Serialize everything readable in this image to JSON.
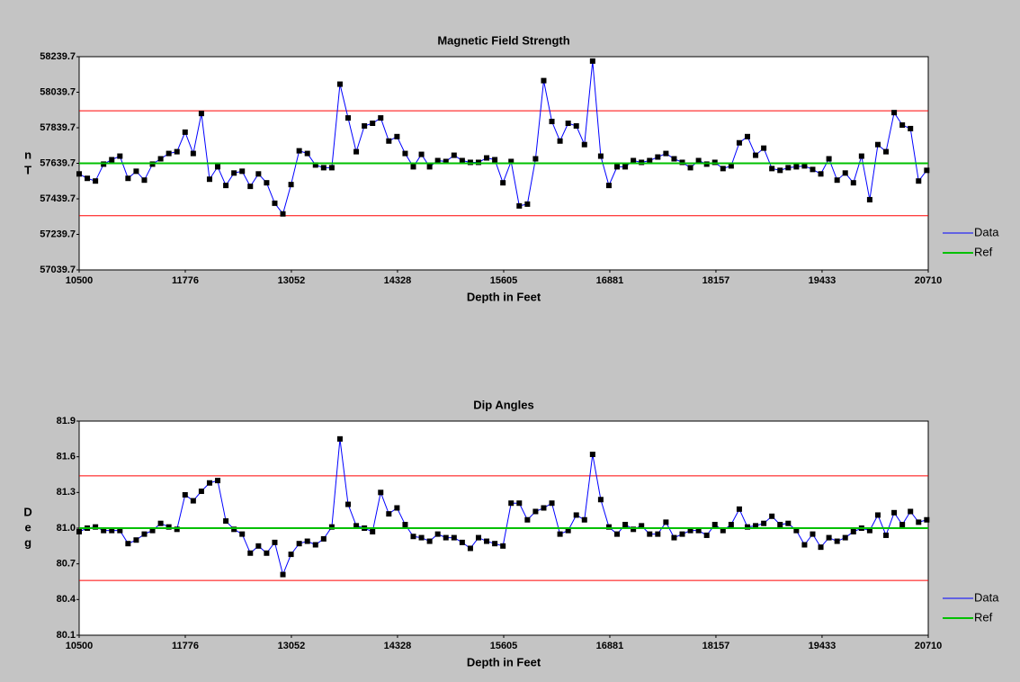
{
  "chart_data": [
    {
      "type": "line",
      "title": "Magnetic Field Strength",
      "xlabel": "Depth in Feet",
      "ylabel": "nT",
      "xlim": [
        10500,
        20710
      ],
      "xticks": [
        10500,
        11776,
        13052,
        14328,
        15605,
        16881,
        18157,
        19433,
        20710
      ],
      "ylim": [
        57039.7,
        58239.7
      ],
      "yticks": [
        57039.7,
        57239.7,
        57439.7,
        57639.7,
        57839.7,
        58039.7,
        58239.7
      ],
      "legend": "right",
      "marker": "square",
      "marker_color": "#000000",
      "x": [
        10500,
        10598,
        10696,
        10794,
        10892,
        10990,
        11088,
        11186,
        11284,
        11382,
        11480,
        11578,
        11676,
        11774,
        11872,
        11970,
        12068,
        12166,
        12264,
        12362,
        12460,
        12558,
        12656,
        12754,
        12852,
        12950,
        13048,
        13146,
        13244,
        13342,
        13440,
        13538,
        13636,
        13734,
        13832,
        13930,
        14028,
        14126,
        14224,
        14322,
        14420,
        14518,
        14616,
        14714,
        14812,
        14910,
        15008,
        15106,
        15204,
        15302,
        15400,
        15498,
        15596,
        15694,
        15792,
        15890,
        15988,
        16086,
        16184,
        16282,
        16380,
        16478,
        16576,
        16674,
        16772,
        16870,
        16968,
        17066,
        17164,
        17262,
        17360,
        17458,
        17556,
        17654,
        17752,
        17850,
        17948,
        18046,
        18144,
        18242,
        18340,
        18438,
        18536,
        18634,
        18732,
        18830,
        18928,
        19026,
        19124,
        19222,
        19320,
        19418,
        19516,
        19614,
        19712,
        19810,
        19908,
        20006,
        20104,
        20202,
        20300,
        20398,
        20496,
        20594,
        20692
      ],
      "series": [
        {
          "name": "Data",
          "color": "#0000ff",
          "values": [
            57580,
            57555,
            57540,
            57635,
            57660,
            57680,
            57555,
            57595,
            57545,
            57635,
            57665,
            57695,
            57705,
            57815,
            57695,
            57920,
            57550,
            57620,
            57515,
            57585,
            57595,
            57510,
            57580,
            57530,
            57415,
            57355,
            57520,
            57710,
            57695,
            57630,
            57615,
            57615,
            58085,
            57895,
            57705,
            57850,
            57865,
            57895,
            57765,
            57790,
            57695,
            57620,
            57690,
            57620,
            57655,
            57650,
            57685,
            57655,
            57645,
            57645,
            57670,
            57660,
            57530,
            57650,
            57400,
            57410,
            57665,
            58105,
            57875,
            57765,
            57865,
            57850,
            57745,
            58215,
            57680,
            57515,
            57620,
            57620,
            57655,
            57645,
            57655,
            57675,
            57695,
            57665,
            57645,
            57615,
            57655,
            57635,
            57645,
            57610,
            57625,
            57755,
            57790,
            57685,
            57725,
            57610,
            57600,
            57615,
            57620,
            57625,
            57605,
            57580,
            57665,
            57545,
            57585,
            57530,
            57680,
            57435,
            57745,
            57705,
            57925,
            57855,
            57835,
            57540,
            57600
          ]
        },
        {
          "name": "Ref",
          "color": "#00c000",
          "value": 57639.7
        }
      ],
      "limits": [
        57935,
        57345
      ],
      "limit_color": "#ff0000"
    },
    {
      "type": "line",
      "title": "Dip Angles",
      "xlabel": "Depth in Feet",
      "ylabel": "Deg",
      "xlim": [
        10500,
        20710
      ],
      "xticks": [
        10500,
        11776,
        13052,
        14328,
        15605,
        16881,
        18157,
        19433,
        20710
      ],
      "ylim": [
        80.1,
        81.9
      ],
      "yticks": [
        80.1,
        80.4,
        80.7,
        {
          "value": 81,
          "label": "81.0"
        },
        81.3,
        81.6,
        81.9
      ],
      "legend": "right",
      "marker": "square",
      "marker_color": "#000000",
      "x": [
        10500,
        10598,
        10696,
        10794,
        10892,
        10990,
        11088,
        11186,
        11284,
        11382,
        11480,
        11578,
        11676,
        11774,
        11872,
        11970,
        12068,
        12166,
        12264,
        12362,
        12460,
        12558,
        12656,
        12754,
        12852,
        12950,
        13048,
        13146,
        13244,
        13342,
        13440,
        13538,
        13636,
        13734,
        13832,
        13930,
        14028,
        14126,
        14224,
        14322,
        14420,
        14518,
        14616,
        14714,
        14812,
        14910,
        15008,
        15106,
        15204,
        15302,
        15400,
        15498,
        15596,
        15694,
        15792,
        15890,
        15988,
        16086,
        16184,
        16282,
        16380,
        16478,
        16576,
        16674,
        16772,
        16870,
        16968,
        17066,
        17164,
        17262,
        17360,
        17458,
        17556,
        17654,
        17752,
        17850,
        17948,
        18046,
        18144,
        18242,
        18340,
        18438,
        18536,
        18634,
        18732,
        18830,
        18928,
        19026,
        19124,
        19222,
        19320,
        19418,
        19516,
        19614,
        19712,
        19810,
        19908,
        20006,
        20104,
        20202,
        20300,
        20398,
        20496,
        20594,
        20692
      ],
      "series": [
        {
          "name": "Data",
          "color": "#0000ff",
          "values": [
            80.97,
            81.0,
            81.01,
            80.98,
            80.98,
            80.98,
            80.87,
            80.9,
            80.95,
            80.98,
            81.04,
            81.01,
            80.99,
            81.28,
            81.23,
            81.31,
            81.38,
            81.4,
            81.06,
            80.99,
            80.95,
            80.79,
            80.85,
            80.79,
            80.88,
            80.61,
            80.78,
            80.87,
            80.89,
            80.86,
            80.91,
            81.01,
            81.75,
            81.2,
            81.02,
            81.0,
            80.97,
            81.3,
            81.12,
            81.17,
            81.03,
            80.93,
            80.92,
            80.89,
            80.95,
            80.92,
            80.92,
            80.88,
            80.83,
            80.92,
            80.89,
            80.87,
            80.85,
            81.21,
            81.21,
            81.07,
            81.14,
            81.17,
            81.21,
            80.95,
            80.98,
            81.11,
            81.07,
            81.62,
            81.24,
            81.01,
            80.95,
            81.03,
            80.99,
            81.02,
            80.95,
            80.95,
            81.05,
            80.92,
            80.95,
            80.98,
            80.98,
            80.94,
            81.03,
            80.98,
            81.03,
            81.16,
            81.01,
            81.02,
            81.04,
            81.1,
            81.03,
            81.04,
            80.98,
            80.86,
            80.95,
            80.84,
            80.92,
            80.89,
            80.92,
            80.97,
            81.0,
            80.98,
            81.11,
            80.94,
            81.13,
            81.03,
            81.14,
            81.05,
            81.07
          ]
        },
        {
          "name": "Ref",
          "color": "#00c000",
          "value": 81.0
        }
      ],
      "limits": [
        81.44,
        80.56
      ],
      "limit_color": "#ff0000"
    }
  ]
}
